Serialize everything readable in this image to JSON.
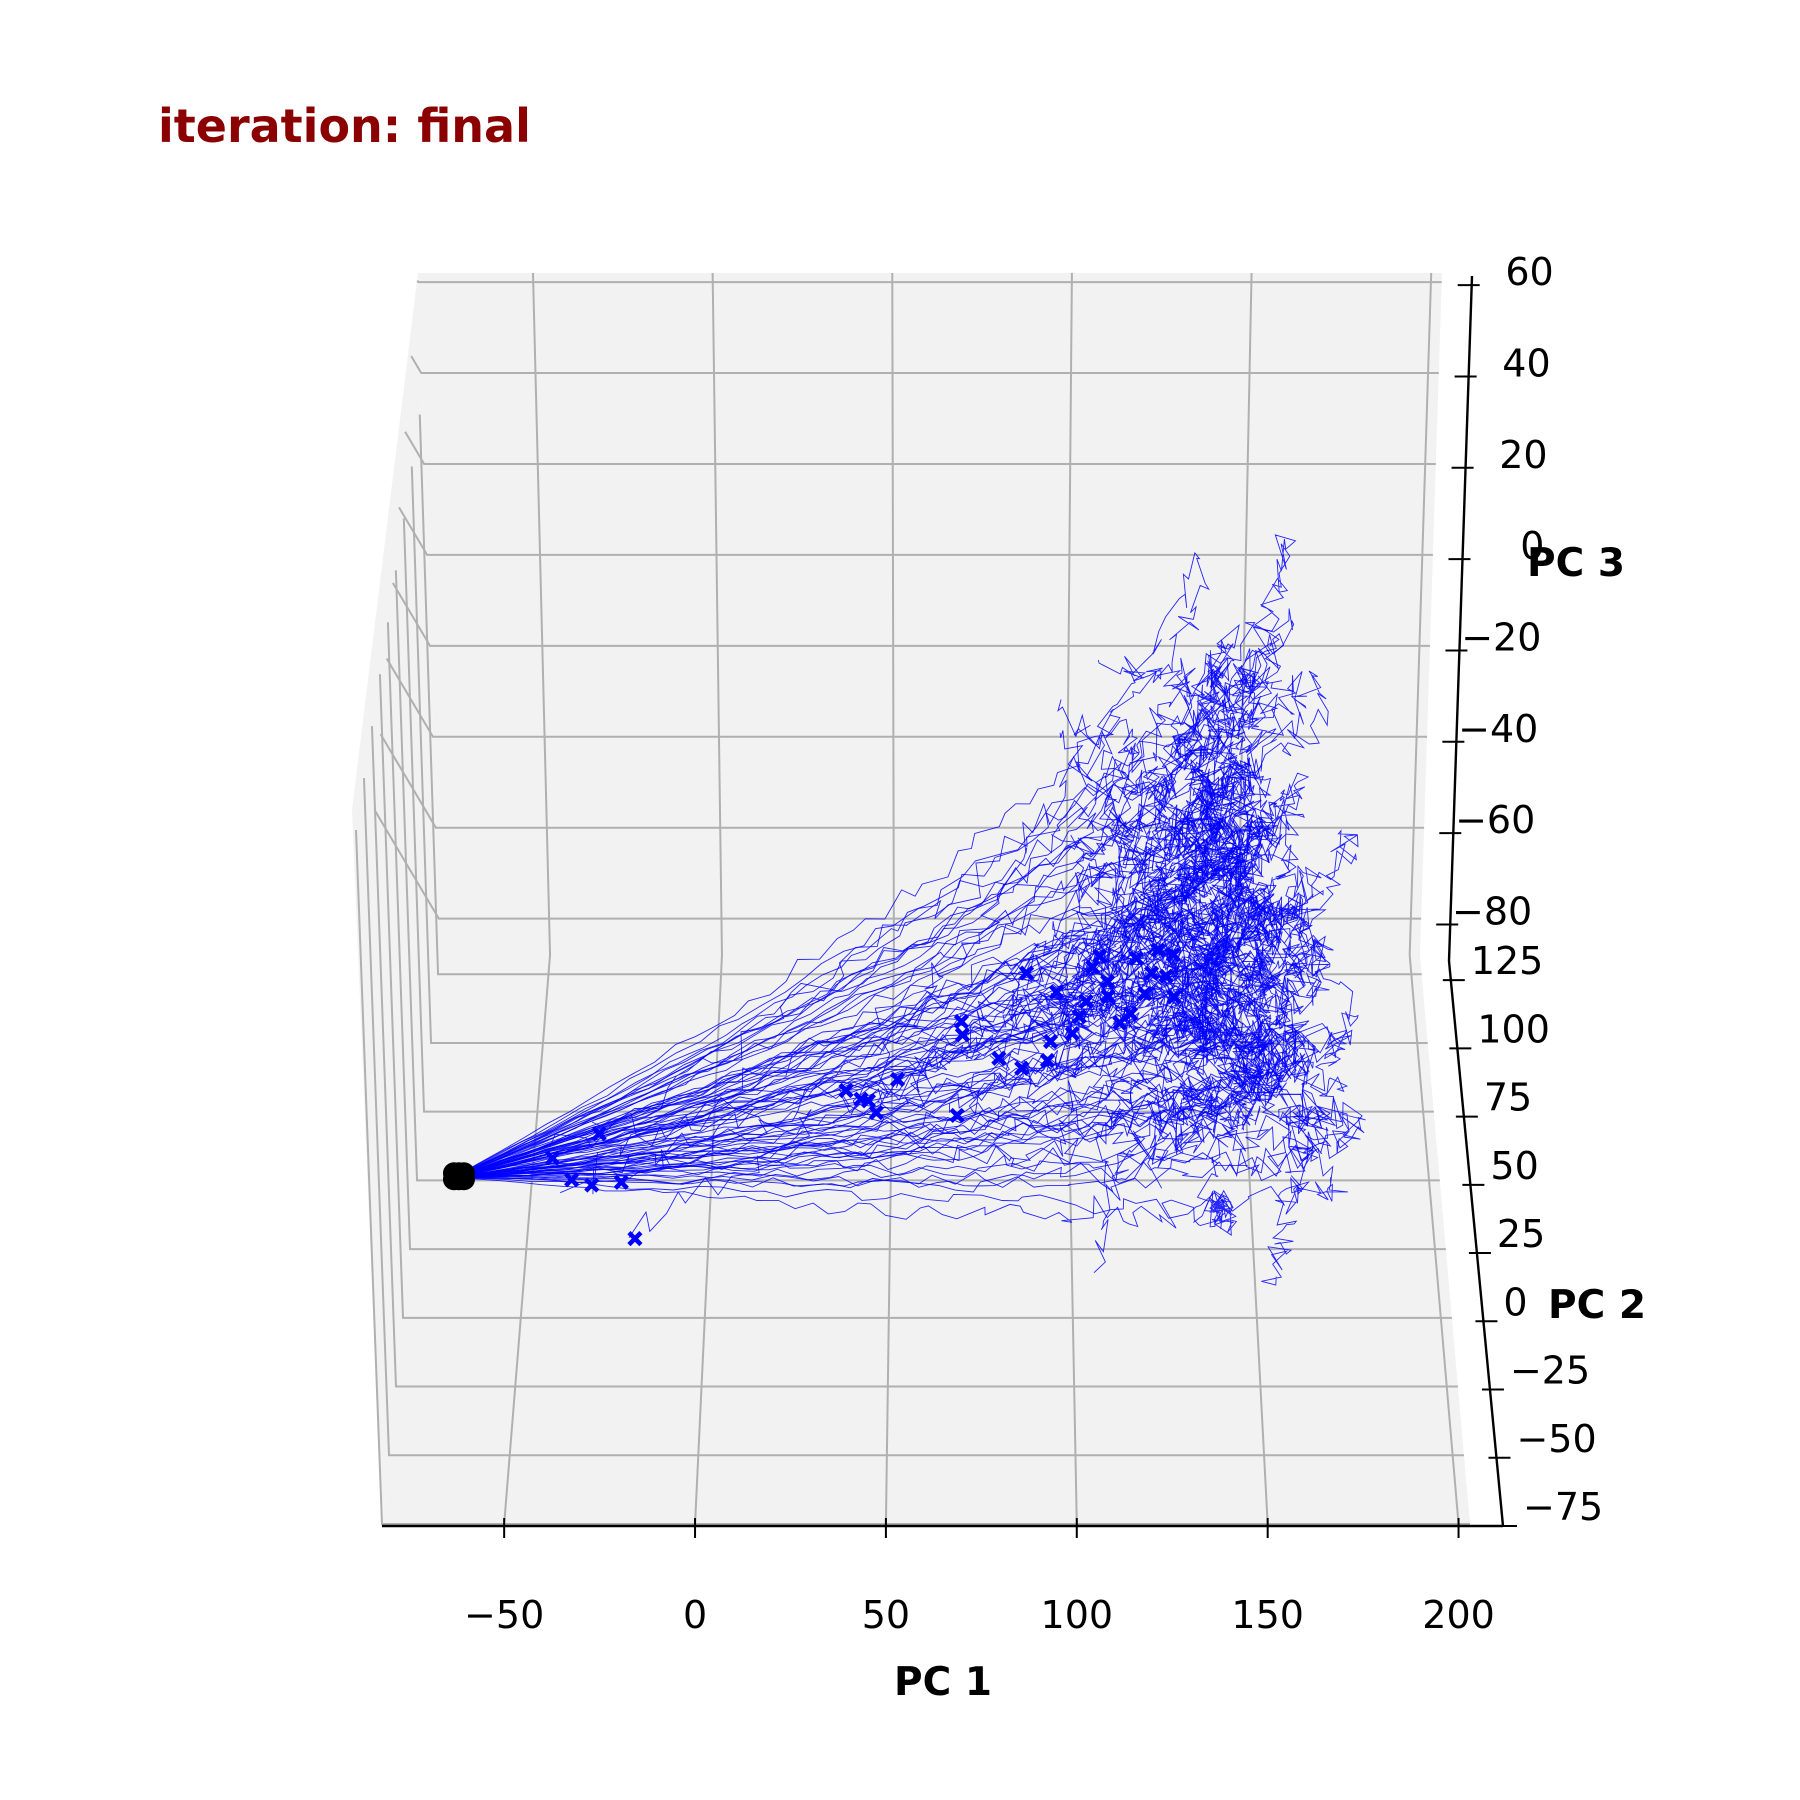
{
  "chart_data": {
    "type": "3d-line",
    "title": "iteration: final",
    "colors": {
      "title": "#8b0000",
      "trajectory": "#0000ff",
      "start_marker": "#000000",
      "end_marker": "#0000ff",
      "pane": "#f2f2f2",
      "grid": "#b0b0b0"
    },
    "axes": {
      "x": {
        "label": "PC 1",
        "ticks": [
          -50,
          0,
          50,
          100,
          150,
          200
        ],
        "tick_labels": [
          "−50",
          "0",
          "50",
          "100",
          "150",
          "200"
        ],
        "range": [
          -82,
          203
        ]
      },
      "y": {
        "label": "PC 2",
        "ticks": [
          -75,
          -50,
          -25,
          0,
          25,
          50,
          75,
          100,
          125
        ],
        "tick_labels": [
          "−75",
          "−50",
          "−25",
          "0",
          "25",
          "50",
          "75",
          "100",
          "125"
        ],
        "range": [
          -75,
          132
        ]
      },
      "z": {
        "label": "PC 3",
        "ticks": [
          -80,
          -60,
          -40,
          -20,
          0,
          20,
          40,
          60
        ],
        "tick_labels": [
          "−80",
          "−60",
          "−40",
          "−20",
          "0",
          "20",
          "40",
          "60"
        ],
        "range": [
          -88,
          62
        ]
      }
    },
    "grid": true,
    "legend": "none",
    "start_point": {
      "x": -68,
      "y": 10,
      "z": -62,
      "marker": "circle"
    },
    "series_summary": "about 80 noisy trajectories from the common start point; end points marked with x",
    "trajectory_endpoints": [
      [
        -40,
        -2,
        -50
      ],
      [
        -35,
        -2,
        -55
      ],
      [
        -30,
        4,
        -60
      ],
      [
        -28,
        10,
        -52
      ],
      [
        -22,
        5,
        -60
      ],
      [
        -18,
        -6,
        -66
      ],
      [
        40,
        2,
        -37
      ],
      [
        48,
        5,
        -44
      ],
      [
        44,
        2,
        -39
      ],
      [
        54,
        6,
        -37
      ],
      [
        46,
        3,
        -40
      ],
      [
        72,
        8,
        -28
      ],
      [
        82,
        -10,
        -22
      ],
      [
        72,
        -3,
        -18
      ],
      [
        90,
        2,
        -10
      ],
      [
        98,
        3,
        -15
      ],
      [
        88,
        -1,
        -30
      ],
      [
        102,
        -1,
        -22
      ],
      [
        96,
        4,
        -27
      ],
      [
        95,
        5,
        -32
      ],
      [
        104,
        2,
        -20
      ],
      [
        106,
        -2,
        -14
      ],
      [
        108,
        1,
        -8
      ],
      [
        112,
        2,
        -12
      ],
      [
        120,
        1,
        -6
      ],
      [
        124,
        2,
        -10
      ],
      [
        122,
        4,
        -16
      ],
      [
        112,
        3,
        -16
      ],
      [
        118,
        3,
        -20
      ],
      [
        128,
        4,
        -12
      ],
      [
        126,
        4,
        -6
      ],
      [
        110,
        5,
        -8
      ],
      [
        130,
        -4,
        -2
      ],
      [
        115,
        6,
        -24
      ],
      [
        130,
        6,
        -18
      ],
      [
        70,
        4,
        -44
      ]
    ]
  }
}
